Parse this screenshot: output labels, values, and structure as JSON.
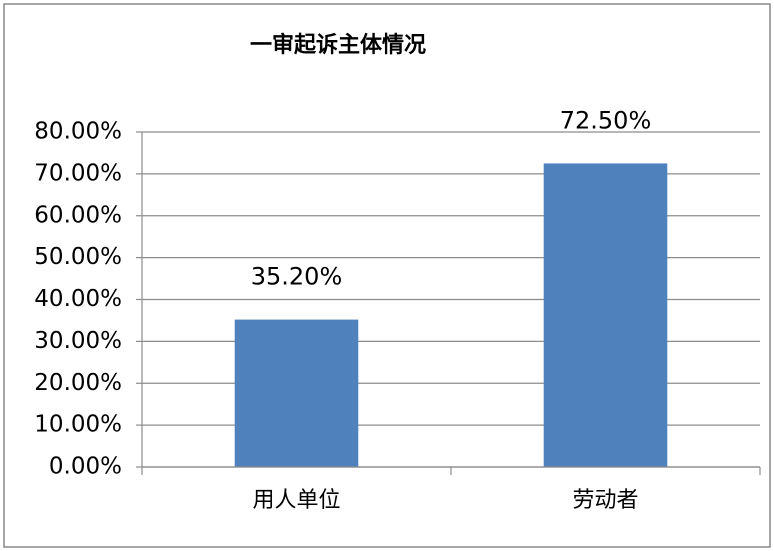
{
  "chart_data": {
    "type": "bar",
    "title": "一审起诉主体情况",
    "categories": [
      "用人单位",
      "劳动者"
    ],
    "values": [
      35.2,
      72.5
    ],
    "value_labels": [
      "35.20%",
      "72.50%"
    ],
    "color": "#4f81bd",
    "ylim": [
      0,
      80
    ],
    "yticks": [
      {
        "value": 0,
        "label": "0.00%"
      },
      {
        "value": 10,
        "label": "10.00%"
      },
      {
        "value": 20,
        "label": "20.00%"
      },
      {
        "value": 30,
        "label": "30.00%"
      },
      {
        "value": 40,
        "label": "40.00%"
      },
      {
        "value": 50,
        "label": "50.00%"
      },
      {
        "value": 60,
        "label": "60.00%"
      },
      {
        "value": 70,
        "label": "70.00%"
      },
      {
        "value": 80,
        "label": "80.00%"
      }
    ],
    "grid": true
  }
}
